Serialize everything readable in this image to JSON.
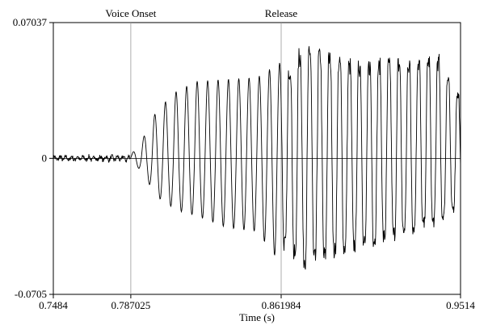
{
  "chart_data": {
    "type": "line",
    "title": "",
    "xlabel": "Time (s)",
    "ylabel": "",
    "xlim": [
      0.7484,
      0.9514
    ],
    "ylim": [
      -0.0705,
      0.07037
    ],
    "x_ticks": [
      {
        "value": 0.7484,
        "label": "0.7484"
      },
      {
        "value": 0.787025,
        "label": "0.787025"
      },
      {
        "value": 0.861984,
        "label": "0.861984"
      },
      {
        "value": 0.9514,
        "label": "0.9514"
      }
    ],
    "y_ticks": [
      {
        "value": 0.07037,
        "label": "0.07037"
      },
      {
        "value": 0,
        "label": "0"
      },
      {
        "value": -0.0705,
        "label": "-0.0705"
      }
    ],
    "zero_line": true,
    "markers": [
      {
        "x": 0.787025,
        "label": "Voice Onset"
      },
      {
        "x": 0.861984,
        "label": "Release"
      }
    ],
    "series": [
      {
        "color": "#000000",
        "envelope": [
          {
            "t": 0.7484,
            "pos": 0.0018,
            "neg": 0.0018
          },
          {
            "t": 0.787025,
            "pos": 0.0018,
            "neg": 0.002
          },
          {
            "t": 0.792,
            "pos": 0.008,
            "neg": 0.006
          },
          {
            "t": 0.8,
            "pos": 0.025,
            "neg": 0.02
          },
          {
            "t": 0.81,
            "pos": 0.035,
            "neg": 0.027
          },
          {
            "t": 0.82,
            "pos": 0.04,
            "neg": 0.03
          },
          {
            "t": 0.835,
            "pos": 0.041,
            "neg": 0.036
          },
          {
            "t": 0.85,
            "pos": 0.042,
            "neg": 0.038
          },
          {
            "t": 0.861984,
            "pos": 0.05,
            "neg": 0.055
          },
          {
            "t": 0.87,
            "pos": 0.068,
            "neg": 0.068
          },
          {
            "t": 0.88,
            "pos": 0.07,
            "neg": 0.068
          },
          {
            "t": 0.895,
            "pos": 0.062,
            "neg": 0.06
          },
          {
            "t": 0.91,
            "pos": 0.062,
            "neg": 0.055
          },
          {
            "t": 0.925,
            "pos": 0.064,
            "neg": 0.048
          },
          {
            "t": 0.94,
            "pos": 0.066,
            "neg": 0.042
          },
          {
            "t": 0.9514,
            "pos": 0.04,
            "neg": 0.03
          }
        ]
      }
    ]
  }
}
